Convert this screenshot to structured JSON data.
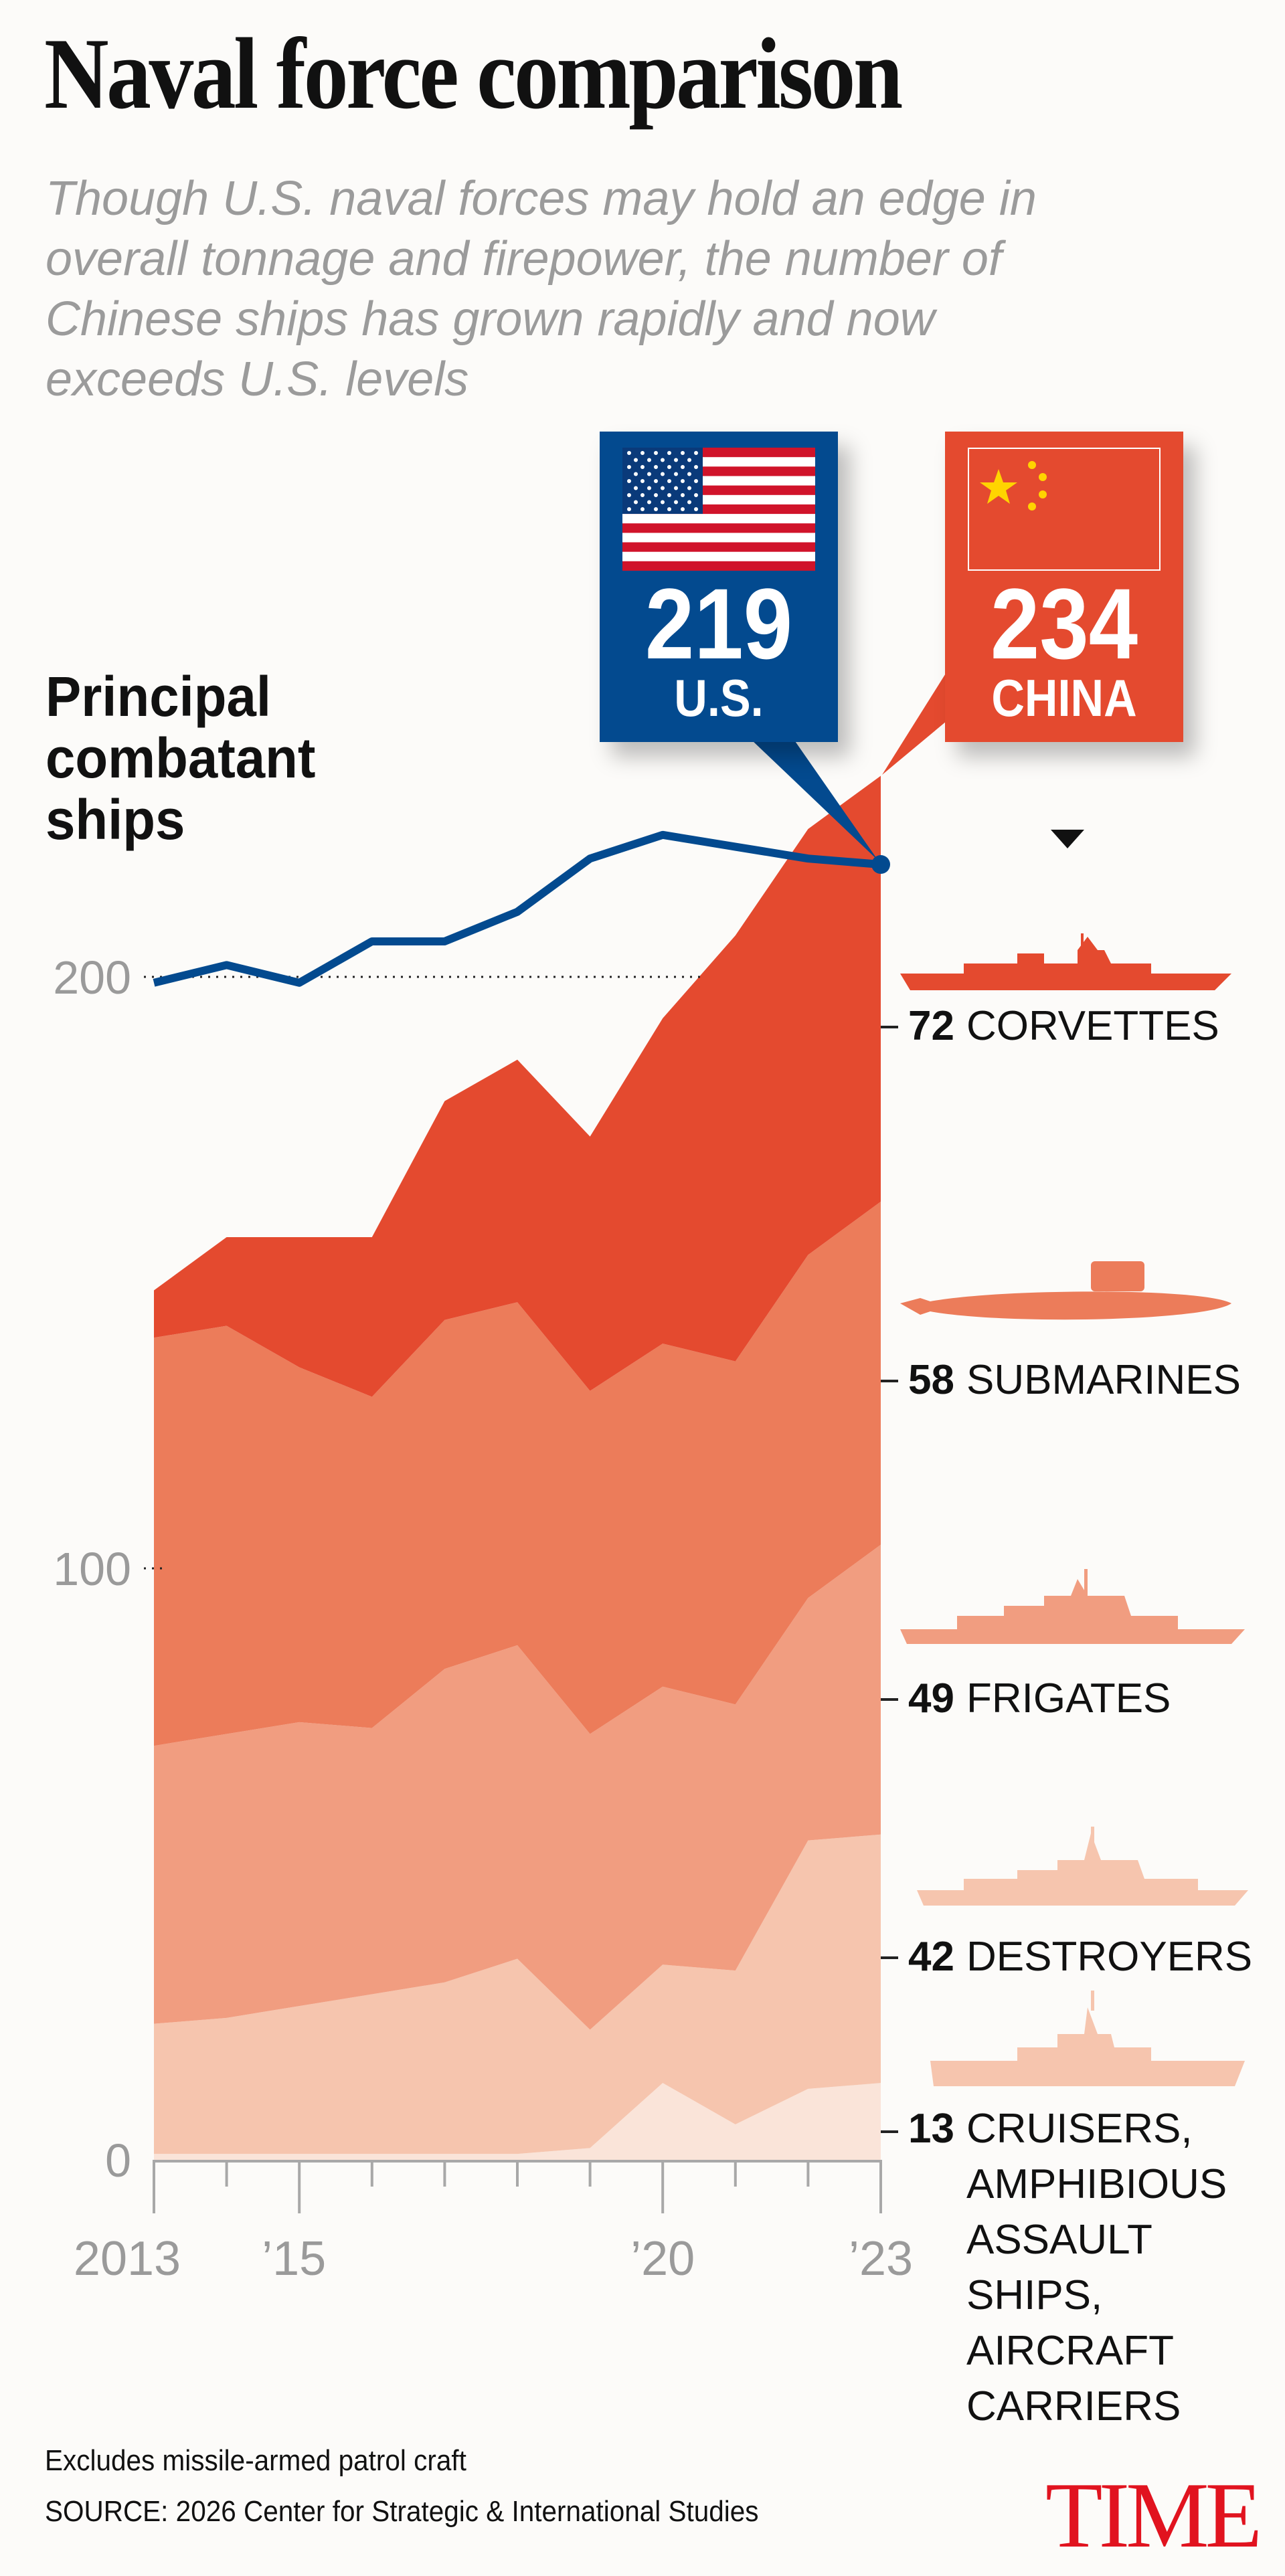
{
  "title": "Naval force comparison",
  "subtitle": "Though U.S. naval forces may hold an edge in overall tonnage and firepower, the number of Chinese ships has grown rapidly and now exceeds U.S. levels",
  "callouts": {
    "us": {
      "value": "219",
      "label": "U.S.",
      "color": "#034a8f",
      "flag": "us-flag-icon"
    },
    "china": {
      "value": "234",
      "label": "CHINA",
      "color": "#e44a2f",
      "flag": "china-flag-icon"
    }
  },
  "chart_data": {
    "type": "area",
    "title": "Principal combatant ships",
    "x": [
      2013,
      2014,
      2015,
      2016,
      2017,
      2018,
      2019,
      2020,
      2021,
      2022,
      2023
    ],
    "x_tick_labels": [
      {
        "year": 2013,
        "label": "2013"
      },
      {
        "year": 2015,
        "label": "’15"
      },
      {
        "year": 2020,
        "label": "’20"
      },
      {
        "year": 2023,
        "label": "’23"
      }
    ],
    "y_ticks": [
      {
        "value": 0,
        "label": "0"
      },
      {
        "value": 100,
        "label": "100"
      },
      {
        "value": 200,
        "label": "200"
      }
    ],
    "ylim": [
      0,
      240
    ],
    "stacked": true,
    "series": [
      {
        "name": "Cruisers, amphibious assault ships, aircraft carriers",
        "count": "13",
        "label": "CRUISERS,\nAMPHIBIOUS\nASSAULT\nSHIPS,\nAIRCRAFT\nCARRIERS",
        "color": "#fae4d9",
        "icon": "carrier-silhouette-icon",
        "values": [
          1,
          1,
          1,
          1,
          1,
          1,
          2,
          13,
          6,
          12,
          13
        ]
      },
      {
        "name": "Destroyers",
        "count": "42",
        "label": "DESTROYERS",
        "color": "#f6c5ae",
        "icon": "destroyer-silhouette-icon",
        "values": [
          22,
          23,
          25,
          27,
          29,
          33,
          20,
          20,
          26,
          42,
          42
        ]
      },
      {
        "name": "Frigates",
        "count": "49",
        "label": "FRIGATES",
        "color": "#f19d80",
        "icon": "frigate-silhouette-icon",
        "values": [
          47,
          48,
          48,
          45,
          53,
          53,
          50,
          47,
          45,
          41,
          49
        ]
      },
      {
        "name": "Submarines",
        "count": "58",
        "label": "SUBMARINES",
        "color": "#ec7c5a",
        "icon": "submarine-silhouette-icon",
        "values": [
          69,
          69,
          60,
          56,
          59,
          58,
          58,
          58,
          58,
          58,
          58
        ]
      },
      {
        "name": "Corvettes",
        "count": "72",
        "label": "CORVETTES",
        "color": "#e44a2f",
        "icon": "corvette-silhouette-icon",
        "values": [
          8,
          15,
          22,
          27,
          37,
          41,
          43,
          55,
          72,
          72,
          72
        ]
      }
    ],
    "line_series": {
      "name": "U.S.",
      "color": "#034a8f",
      "values": [
        199,
        202,
        199,
        206,
        206,
        211,
        220,
        224,
        222,
        220,
        219
      ]
    },
    "china_total": [
      147,
      156,
      156,
      156,
      179,
      186,
      173,
      193,
      207,
      225,
      234
    ]
  },
  "footer": {
    "note": "Excludes missile-armed patrol craft",
    "source": "SOURCE: 2026 Center for Strategic & International Studies",
    "logo": "TIME"
  }
}
